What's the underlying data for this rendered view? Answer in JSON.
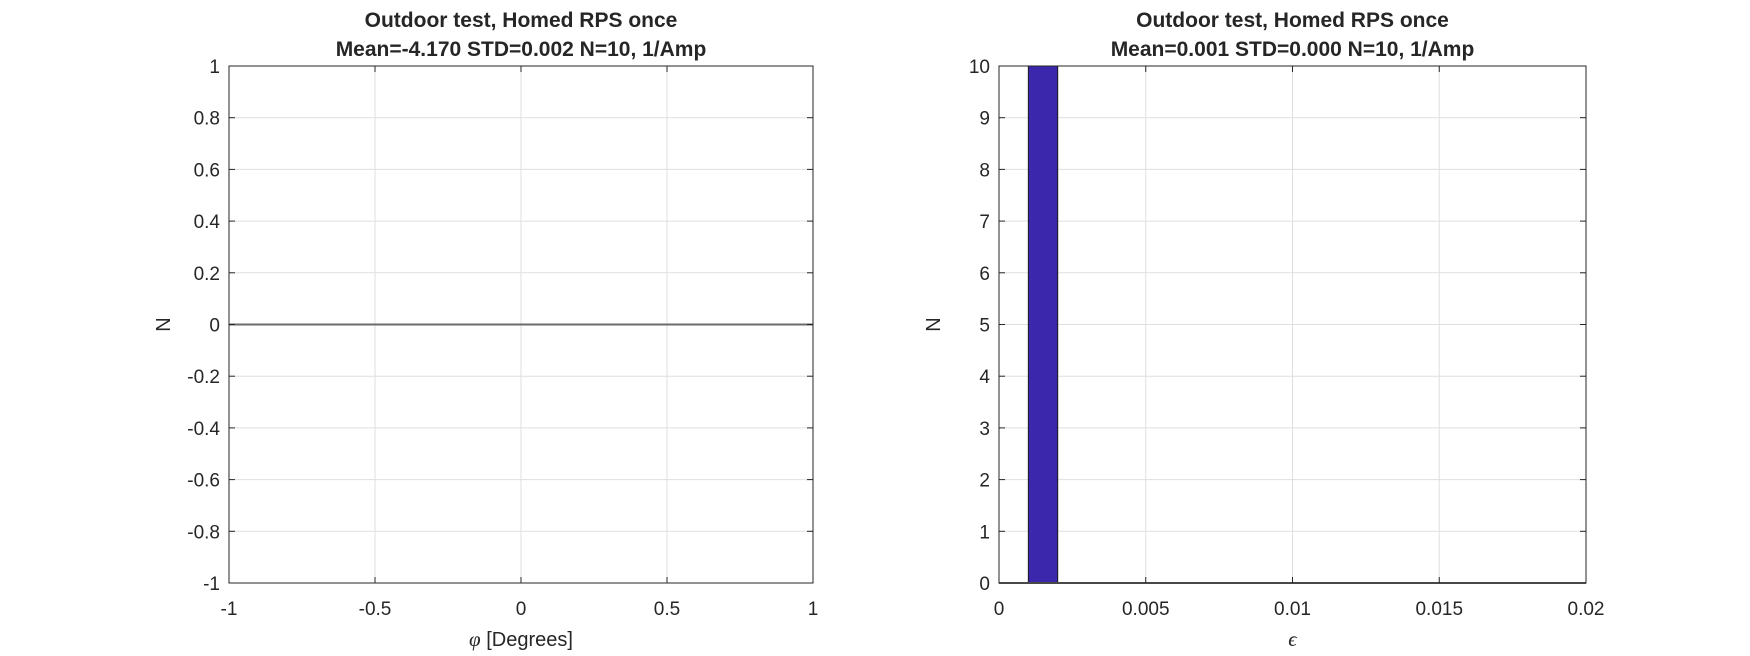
{
  "chart_data": [
    {
      "type": "bar",
      "title": [
        "Outdoor test, Homed RPS once",
        "Mean=-4.170 STD=0.002 N=10, 1/Amp"
      ],
      "xlabel": {
        "symbol": "φ",
        "text": "[Degrees]"
      },
      "ylabel": "N",
      "xlim": [
        -1,
        1
      ],
      "ylim": [
        -1,
        1
      ],
      "xticks": [
        -1,
        -0.5,
        0,
        0.5,
        1
      ],
      "xtick_labels": [
        "-1",
        "-0.5",
        "0",
        "0.5",
        "1"
      ],
      "yticks": [
        -1,
        -0.8,
        -0.6,
        -0.4,
        -0.2,
        0,
        0.2,
        0.4,
        0.6,
        0.8,
        1
      ],
      "ytick_labels": [
        "-1",
        "-0.8",
        "-0.6",
        "-0.4",
        "-0.2",
        "0",
        "0.2",
        "0.4",
        "0.6",
        "0.8",
        "1"
      ],
      "grid": true,
      "bars": [],
      "baseline": 0,
      "bar_color": "#3b27ab",
      "baseline_color": "#6b6b6b"
    },
    {
      "type": "bar",
      "title": [
        "Outdoor test, Homed RPS once",
        "Mean=0.001 STD=0.000 N=10, 1/Amp"
      ],
      "xlabel": {
        "symbol": "ϵ",
        "text": ""
      },
      "ylabel": "N",
      "xlim": [
        0,
        0.02
      ],
      "ylim": [
        0,
        10
      ],
      "xticks": [
        0,
        0.005,
        0.01,
        0.015,
        0.02
      ],
      "xtick_labels": [
        "0",
        "0.005",
        "0.01",
        "0.015",
        "0.02"
      ],
      "yticks": [
        0,
        1,
        2,
        3,
        4,
        5,
        6,
        7,
        8,
        9,
        10
      ],
      "ytick_labels": [
        "0",
        "1",
        "2",
        "3",
        "4",
        "5",
        "6",
        "7",
        "8",
        "9",
        "10"
      ],
      "grid": true,
      "bars": [
        {
          "x0": 0.001,
          "x1": 0.002,
          "count": 10
        }
      ],
      "baseline": 0,
      "bar_color": "#3b27ab",
      "baseline_color": "#6b6b6b"
    }
  ],
  "colors": {
    "axes": "#262626",
    "grid": "#dfdfdf",
    "bar": "#3b27ab"
  }
}
